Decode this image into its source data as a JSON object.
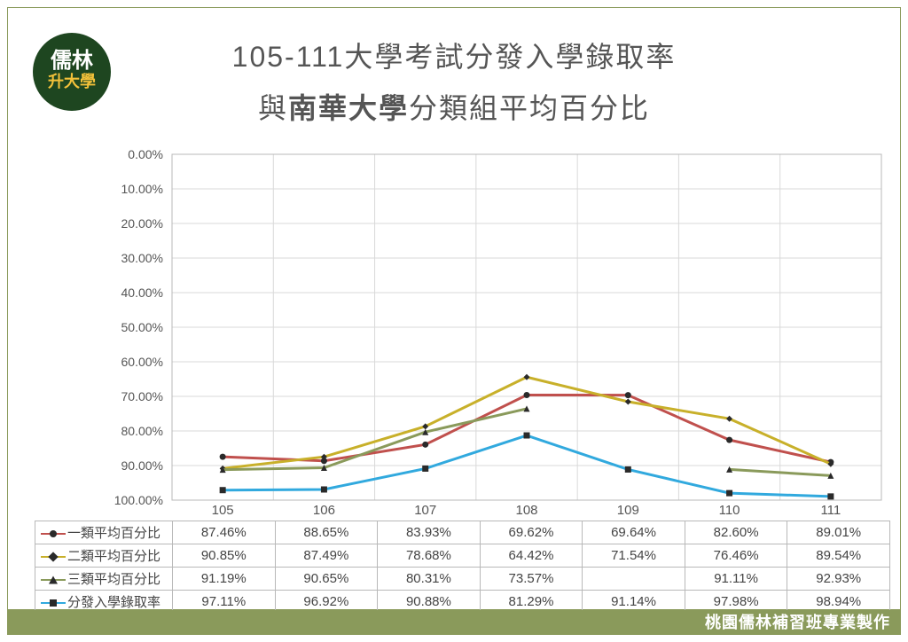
{
  "logo": {
    "line1": "儒林",
    "line2": "升大學"
  },
  "title": {
    "line1": "105-111大學考試分發入學錄取率",
    "line2_pre": "與",
    "line2_bold": "南華大學",
    "line2_post": "分類組平均百分比"
  },
  "footer": "桃園儒林補習班專業製作",
  "chart": {
    "type": "line",
    "background_color": "#ffffff",
    "grid_color": "#d9d9d9",
    "axis_color": "#b8b8b8",
    "text_color": "#555555",
    "ylim": [
      0,
      100
    ],
    "y_inverted": true,
    "ytick_step": 10,
    "y_suffix": "%",
    "y_format": "0.00%",
    "categories": [
      "105",
      "106",
      "107",
      "108",
      "109",
      "110",
      "111"
    ],
    "line_width": 3,
    "marker_size": 7,
    "series": [
      {
        "name": "一類平均百分比",
        "color": "#c0504d",
        "marker": "circle",
        "marker_fill": "#2a2a2a",
        "values": [
          87.46,
          88.65,
          83.93,
          69.62,
          69.64,
          82.6,
          89.01
        ]
      },
      {
        "name": "二類平均百分比",
        "color": "#c8b02a",
        "marker": "diamond",
        "marker_fill": "#2a2a2a",
        "values": [
          90.85,
          87.49,
          78.68,
          64.42,
          71.54,
          76.46,
          89.54
        ]
      },
      {
        "name": "三類平均百分比",
        "color": "#8a9a5b",
        "marker": "triangle",
        "marker_fill": "#2a2a2a",
        "values": [
          91.19,
          90.65,
          80.31,
          73.57,
          null,
          91.11,
          92.93
        ]
      },
      {
        "name": "分發入學錄取率",
        "color": "#31a9de",
        "marker": "square",
        "marker_fill": "#2a2a2a",
        "values": [
          97.11,
          96.92,
          90.88,
          81.29,
          91.14,
          97.98,
          98.94
        ]
      }
    ]
  }
}
